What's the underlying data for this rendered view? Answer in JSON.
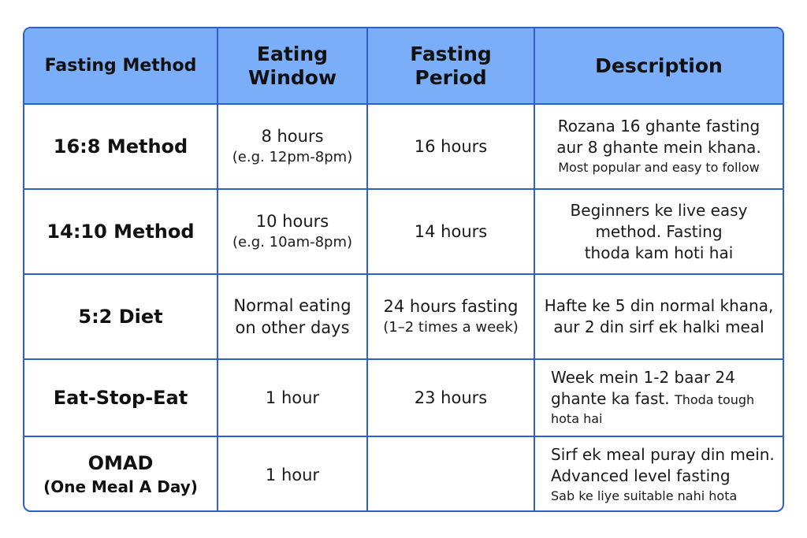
{
  "headers": {
    "method": "Fasting Method",
    "eating_line1": "Eating",
    "eating_line2": "Window",
    "fasting_line1": "Fasting",
    "fasting_line2": "Period",
    "description": "Description"
  },
  "rows": [
    {
      "method": "16:8 Method",
      "eating_main": "8 hours",
      "eating_sub": "(e.g. 12pm-8pm)",
      "fasting_main": "16 hours",
      "desc_line1": "Rozana 16 ghante fasting",
      "desc_line2": "aur 8 ghante mein khana.",
      "desc_small": "Most popular and easy to follow"
    },
    {
      "method": "14:10 Method",
      "eating_main": "10 hours",
      "eating_sub": "(e.g. 10am-8pm)",
      "fasting_main": "14 hours",
      "desc_line1": "Beginners ke live easy",
      "desc_line2": "method. Fasting",
      "desc_line3": "thoda kam hoti hai"
    },
    {
      "method": "5:2 Diet",
      "eating_line1": "Normal eating",
      "eating_line2": "on other days",
      "fasting_main": "24 hours fasting",
      "fasting_sub": "(1–2 times a week)",
      "desc_line1": "Hafte ke 5 din normal khana,",
      "desc_line2": "aur 2 din sirf ek halki meal"
    },
    {
      "method": "Eat-Stop-Eat",
      "eating_main": "1 hour",
      "fasting_main": "23 hours",
      "desc_line1": "Week mein 1-2 baar 24",
      "desc_line2": "ghante ka fast.",
      "desc_line2_small": "Thoda tough",
      "desc_line3_small": "hota hai"
    },
    {
      "method": "OMAD",
      "method_sub": "(One Meal A Day)",
      "eating_main": "1 hour",
      "fasting_main": "",
      "desc_line1": "Sirf ek meal puray din mein.",
      "desc_line2": "Advanced level fasting",
      "desc_small": "Sab ke liye suitable nahi hota"
    }
  ]
}
